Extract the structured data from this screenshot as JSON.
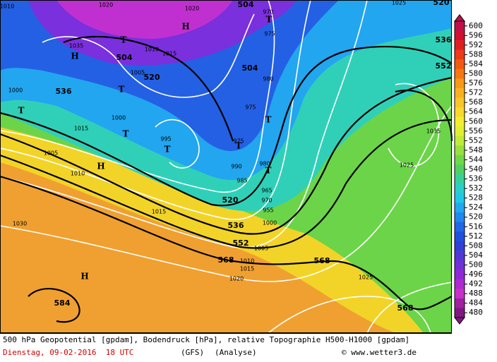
{
  "caption": {
    "line1": "500 hPa Geopotential [gpdam], Bodendruck [hPa], relative Topographie H500-H1000 [gpdam]",
    "date": "Dienstag, 09-02-2016  18 UTC",
    "model": "(GFS)",
    "run": "(Analyse)",
    "credit": "© www.wetter3.de"
  },
  "colorbar": {
    "ticks": [
      600,
      596,
      592,
      588,
      584,
      580,
      576,
      572,
      568,
      564,
      560,
      556,
      552,
      548,
      544,
      540,
      536,
      532,
      528,
      524,
      520,
      516,
      512,
      508,
      504,
      500,
      496,
      492,
      488,
      484,
      480
    ],
    "colors": [
      "#c0104a",
      "#d01030",
      "#e02020",
      "#ee3a18",
      "#f25a10",
      "#f57810",
      "#f89818",
      "#f8b020",
      "#f8c428",
      "#f8d82c",
      "#f4ec30",
      "#e0f030",
      "#c0ec38",
      "#98e040",
      "#70d848",
      "#50d060",
      "#38d098",
      "#28d0c8",
      "#20c8e8",
      "#20a8f0",
      "#2088f0",
      "#2068e8",
      "#2050e0",
      "#3040d8",
      "#5038d8",
      "#7030d8",
      "#9028d8",
      "#b028d0",
      "#c830c8",
      "#a020a0",
      "#801880"
    ]
  },
  "geopotential_labels": [
    "504",
    "504",
    "520",
    "536",
    "504",
    "520",
    "536",
    "552",
    "568",
    "568",
    "584",
    "568",
    "552",
    "536",
    "520"
  ],
  "pressure_labels": [
    "1020",
    "1020",
    "970",
    "975",
    "1035",
    "1010",
    "1015",
    "1005",
    "980",
    "975",
    "1000",
    "1015",
    "995",
    "975",
    "1005",
    "990",
    "980",
    "1010",
    "985",
    "965",
    "970",
    "955",
    "1015",
    "1030",
    "1000",
    "1005",
    "1010",
    "1015",
    "1020",
    "1025",
    "1025",
    "1035",
    "1000",
    "1010",
    "1025"
  ],
  "centers": [
    "H",
    "H",
    "T",
    "T",
    "T",
    "T",
    "T",
    "T",
    "T",
    "T",
    "H",
    "H",
    "T"
  ]
}
